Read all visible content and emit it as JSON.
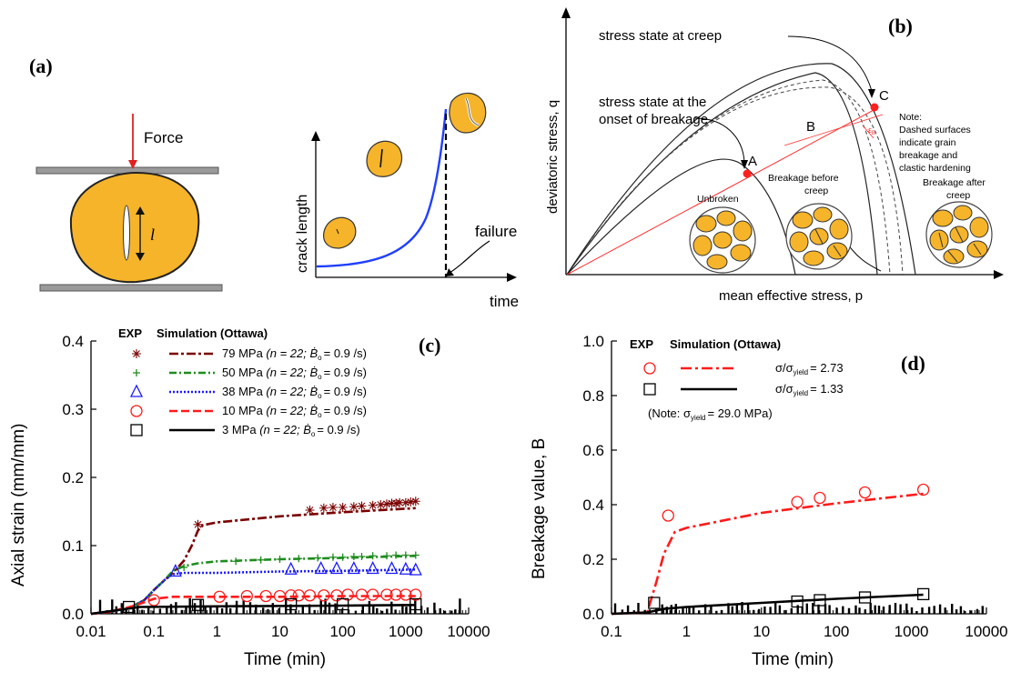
{
  "panels": {
    "a": {
      "label": "(a)",
      "force_label": "Force",
      "crack_symbol": "l"
    },
    "crack_growth": {
      "ylabel": "crack length",
      "xlabel": "time",
      "failure_label": "failure",
      "curve_color": "#1f3fff"
    },
    "b": {
      "label": "(b)",
      "ylabel": "deviatoric stress, q",
      "xlabel": "mean effective stress, p",
      "annot_creep": "stress state at creep",
      "annot_onset_1": "stress state at the",
      "annot_onset_2": "onset of breakage",
      "point_a": "A",
      "point_b": "B",
      "point_c": "C",
      "note_lines": [
        "Note:",
        "Dashed surfaces",
        "indicate grain",
        "breakage and",
        "clastic hardening"
      ],
      "state_unbroken": "Unbroken",
      "state_before_1": "Breakage before",
      "state_before_2": "creep",
      "state_after_1": "Breakage after",
      "state_after_2": "creep",
      "eps_symbol": "ε",
      "eps_sub": "B"
    }
  },
  "chart_data": [
    {
      "panel": "c",
      "type": "scatter",
      "label": "(c)",
      "xscale": "log",
      "xlim": [
        0.01,
        10000
      ],
      "ylim": [
        0,
        0.4
      ],
      "xticks": [
        "0.01",
        "0.1",
        "1",
        "10",
        "100",
        "1000",
        "10000"
      ],
      "yticks": [
        "0.0",
        "0.1",
        "0.2",
        "0.3",
        "0.4"
      ],
      "xlabel": "Time (min)",
      "ylabel": "Axial strain (mm/mm)",
      "legend_header_exp": "EXP",
      "legend_header_sim": "Simulation (Ottawa)",
      "legend_placement": "top-center",
      "series": [
        {
          "name": "79 MPa",
          "params": "(n = 22; Ḃ",
          "params_sub": "o",
          "params_tail": "= 0.9 /s)",
          "color": "#7a0000",
          "marker": "asterisk",
          "dash": "10,3,3,3",
          "exp": [
            [
              0.5,
              0.131
            ],
            [
              30,
              0.152
            ],
            [
              50,
              0.155
            ],
            [
              70,
              0.156
            ],
            [
              100,
              0.156
            ],
            [
              150,
              0.157
            ],
            [
              200,
              0.158
            ],
            [
              300,
              0.159
            ],
            [
              400,
              0.16
            ],
            [
              500,
              0.161
            ],
            [
              600,
              0.162
            ],
            [
              700,
              0.162
            ],
            [
              800,
              0.163
            ],
            [
              1000,
              0.163
            ],
            [
              1200,
              0.164
            ],
            [
              1440,
              0.165
            ]
          ],
          "sim": [
            [
              0.01,
              0.0
            ],
            [
              0.02,
              0.003
            ],
            [
              0.04,
              0.008
            ],
            [
              0.07,
              0.02
            ],
            [
              0.1,
              0.035
            ],
            [
              0.15,
              0.05
            ],
            [
              0.2,
              0.06
            ],
            [
              0.3,
              0.078
            ],
            [
              0.4,
              0.1
            ],
            [
              0.5,
              0.122
            ],
            [
              0.6,
              0.13
            ],
            [
              1,
              0.134
            ],
            [
              10,
              0.143
            ],
            [
              100,
              0.149
            ],
            [
              1440,
              0.155
            ]
          ]
        },
        {
          "name": "50 MPa",
          "params": "(n = 22; Ḃ",
          "params_sub": "o",
          "params_tail": "= 0.9 /s)",
          "color": "#1e8c1e",
          "marker": "plus",
          "dash": "8,3,2,3",
          "exp": [
            [
              0.3,
              0.068
            ],
            [
              2,
              0.077
            ],
            [
              5,
              0.079
            ],
            [
              10,
              0.08
            ],
            [
              20,
              0.081
            ],
            [
              40,
              0.082
            ],
            [
              70,
              0.083
            ],
            [
              100,
              0.083
            ],
            [
              150,
              0.084
            ],
            [
              200,
              0.084
            ],
            [
              300,
              0.085
            ],
            [
              500,
              0.085
            ],
            [
              700,
              0.086
            ],
            [
              1000,
              0.086
            ],
            [
              1440,
              0.086
            ]
          ],
          "sim": [
            [
              0.01,
              0.0
            ],
            [
              0.02,
              0.003
            ],
            [
              0.04,
              0.008
            ],
            [
              0.07,
              0.02
            ],
            [
              0.1,
              0.035
            ],
            [
              0.15,
              0.05
            ],
            [
              0.2,
              0.063
            ],
            [
              0.3,
              0.07
            ],
            [
              0.5,
              0.074
            ],
            [
              1,
              0.077
            ],
            [
              10,
              0.08
            ],
            [
              100,
              0.082
            ],
            [
              1440,
              0.085
            ]
          ]
        },
        {
          "name": "38 MPa",
          "params": "(n = 22; Ḃ",
          "params_sub": "o",
          "params_tail": "= 0.9 /s)",
          "color": "#1a1aff",
          "marker": "triangle",
          "dash": "2,2",
          "exp": [
            [
              0.22,
              0.062
            ],
            [
              15,
              0.065
            ],
            [
              45,
              0.066
            ],
            [
              80,
              0.066
            ],
            [
              150,
              0.066
            ],
            [
              300,
              0.066
            ],
            [
              600,
              0.066
            ],
            [
              1000,
              0.065
            ],
            [
              1440,
              0.064
            ]
          ],
          "sim": [
            [
              0.01,
              0.0
            ],
            [
              0.02,
              0.003
            ],
            [
              0.04,
              0.008
            ],
            [
              0.07,
              0.02
            ],
            [
              0.1,
              0.035
            ],
            [
              0.15,
              0.05
            ],
            [
              0.2,
              0.058
            ],
            [
              0.3,
              0.06
            ],
            [
              1,
              0.06
            ],
            [
              10,
              0.062
            ],
            [
              100,
              0.063
            ],
            [
              1440,
              0.065
            ]
          ]
        },
        {
          "name": "10 MPa",
          "params": "(n = 22; Ḃ",
          "params_sub": "o",
          "params_tail": "= 0.9 /s)",
          "color": "#ff1a1a",
          "marker": "circle",
          "dash": "9,4",
          "exp": [
            [
              0.1,
              0.02
            ],
            [
              1.1,
              0.025
            ],
            [
              3,
              0.026
            ],
            [
              6,
              0.026
            ],
            [
              10,
              0.026
            ],
            [
              15,
              0.027
            ],
            [
              20,
              0.027
            ],
            [
              30,
              0.027
            ],
            [
              50,
              0.027
            ],
            [
              80,
              0.027
            ],
            [
              120,
              0.028
            ],
            [
              200,
              0.028
            ],
            [
              300,
              0.028
            ],
            [
              500,
              0.028
            ],
            [
              700,
              0.028
            ],
            [
              1000,
              0.028
            ],
            [
              1440,
              0.028
            ]
          ],
          "sim": [
            [
              0.01,
              0.0
            ],
            [
              0.02,
              0.003
            ],
            [
              0.05,
              0.012
            ],
            [
              0.1,
              0.022
            ],
            [
              0.2,
              0.025
            ],
            [
              1,
              0.025
            ],
            [
              10,
              0.025
            ],
            [
              100,
              0.026
            ],
            [
              1440,
              0.026
            ]
          ]
        },
        {
          "name": "3 MPa",
          "params": "(n = 22; Ḃ",
          "params_sub": "o",
          "params_tail": "= 0.9 /s)",
          "color": "#000000",
          "marker": "square",
          "dash": "",
          "exp": [
            [
              0.04,
              0.01
            ],
            [
              0.5,
              0.013
            ],
            [
              15,
              0.014
            ],
            [
              100,
              0.014
            ],
            [
              1440,
              0.014
            ]
          ],
          "sim": [
            [
              0.01,
              0.0
            ],
            [
              0.03,
              0.006
            ],
            [
              0.06,
              0.01
            ],
            [
              1,
              0.011
            ],
            [
              100,
              0.012
            ],
            [
              1440,
              0.013
            ]
          ]
        }
      ]
    },
    {
      "panel": "d",
      "type": "scatter",
      "label": "(d)",
      "xscale": "log",
      "xlim": [
        0.1,
        10000
      ],
      "ylim": [
        0,
        1.0
      ],
      "xticks": [
        "0.1",
        "1",
        "10",
        "100",
        "1000",
        "10000"
      ],
      "yticks": [
        "0.0",
        "0.2",
        "0.4",
        "0.6",
        "0.8",
        "1.0"
      ],
      "xlabel": "Time (min)",
      "ylabel": "Breakage value, B",
      "legend_header_exp": "EXP",
      "legend_header_sim": "Simulation (Ottawa)",
      "legend_placement": "top-center",
      "note_prefix": "(Note: σ",
      "note_sub": "yield",
      "note_tail": "= 29.0 MPa)",
      "series": [
        {
          "name": "σ/σ",
          "name_sub": "yield",
          "name_tail": "= 2.73",
          "color": "#ff1a1a",
          "marker": "circle",
          "dash": "12,4,3,4",
          "exp": [
            [
              0.57,
              0.36
            ],
            [
              30,
              0.41
            ],
            [
              60,
              0.425
            ],
            [
              240,
              0.445
            ],
            [
              1440,
              0.455
            ]
          ],
          "sim": [
            [
              0.1,
              0.0
            ],
            [
              0.3,
              0.005
            ],
            [
              0.4,
              0.12
            ],
            [
              0.5,
              0.22
            ],
            [
              0.7,
              0.3
            ],
            [
              1,
              0.315
            ],
            [
              10,
              0.37
            ],
            [
              100,
              0.405
            ],
            [
              1440,
              0.44
            ]
          ]
        },
        {
          "name": "σ/σ",
          "name_sub": "yield",
          "name_tail": "= 1.33",
          "color": "#000000",
          "marker": "square",
          "dash": "",
          "exp": [
            [
              0.37,
              0.04
            ],
            [
              30,
              0.045
            ],
            [
              60,
              0.05
            ],
            [
              240,
              0.06
            ],
            [
              1440,
              0.072
            ]
          ],
          "sim": [
            [
              0.1,
              0.0
            ],
            [
              0.3,
              0.005
            ],
            [
              0.5,
              0.018
            ],
            [
              1,
              0.025
            ],
            [
              10,
              0.04
            ],
            [
              100,
              0.055
            ],
            [
              1440,
              0.07
            ]
          ]
        }
      ]
    }
  ]
}
